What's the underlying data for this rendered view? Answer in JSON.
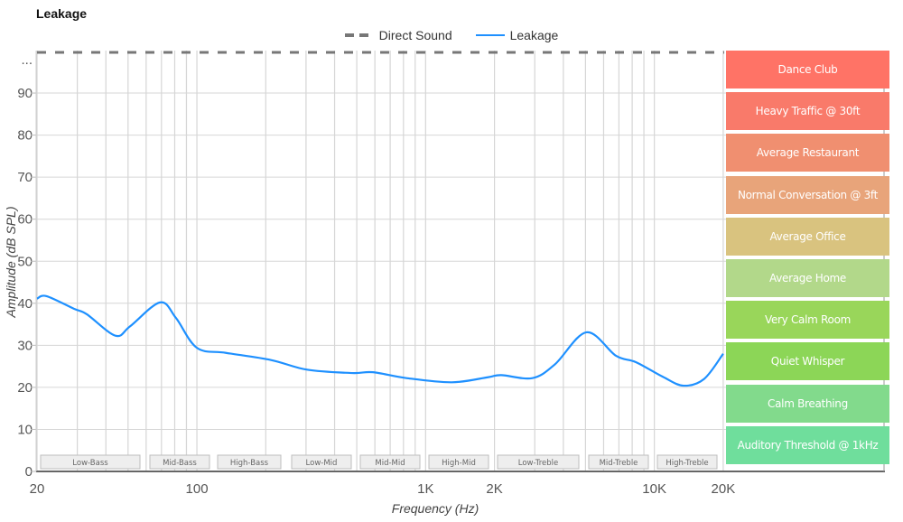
{
  "title": "Leakage",
  "legend": [
    {
      "name": "Direct Sound",
      "style": "dashed",
      "color": "#777777"
    },
    {
      "name": "Leakage",
      "style": "solid",
      "color": "#1e90ff"
    }
  ],
  "axes": {
    "xlabel": "Frequency (Hz)",
    "ylabel": "Amplitude (dB SPL)",
    "x_ticks": [
      "20",
      "100",
      "1K",
      "2K",
      "10K",
      "20K"
    ],
    "y_ticks": [
      "0",
      "10",
      "20",
      "30",
      "40",
      "50",
      "60",
      "70",
      "80",
      "90",
      "..."
    ]
  },
  "bands": [
    "Low-Bass",
    "Mid-Bass",
    "High-Bass",
    "Low-Mid",
    "Mid-Mid",
    "High-Mid",
    "Low-Treble",
    "Mid-Treble",
    "High-Treble"
  ],
  "noise_levels": [
    {
      "label": "Dance Club",
      "color": "#ff7366"
    },
    {
      "label": "Heavy Traffic @ 30ft",
      "color": "#f97a6a"
    },
    {
      "label": "Average Restaurant",
      "color": "#f08f70"
    },
    {
      "label": "Normal Conversation @ 3ft",
      "color": "#e8a47a"
    },
    {
      "label": "Average Office",
      "color": "#d9c37f"
    },
    {
      "label": "Average Home",
      "color": "#b2d88a"
    },
    {
      "label": "Very Calm Room",
      "color": "#99d65a"
    },
    {
      "label": "Quiet Whisper",
      "color": "#8cd657"
    },
    {
      "label": "Calm Breathing",
      "color": "#82da8c"
    },
    {
      "label": "Auditory Threshold @ 1kHz",
      "color": "#6fde9c"
    }
  ],
  "chart_data": {
    "type": "line",
    "title": "Leakage",
    "xlabel": "Frequency (Hz)",
    "ylabel": "Amplitude (dB SPL)",
    "x_scale": "log",
    "xlim": [
      20,
      20000
    ],
    "ylim": [
      0,
      98
    ],
    "grid": true,
    "legend_position": "top-center",
    "series": [
      {
        "name": "Leakage",
        "color": "#1e90ff",
        "x": [
          20,
          22,
          29,
          33,
          44,
          51,
          69,
          81,
          100,
          134,
          211,
          303,
          477,
          588,
          825,
          1300,
          1870,
          2140,
          2930,
          3680,
          5050,
          6800,
          8300,
          10900,
          13400,
          16500,
          20000
        ],
        "y": [
          41.1,
          41.7,
          38.7,
          37.4,
          32.3,
          34.5,
          40.2,
          36.5,
          29.4,
          28.2,
          26.5,
          24.2,
          23.4,
          23.6,
          22.2,
          21.2,
          22.4,
          22.9,
          22.2,
          25.5,
          33.1,
          27.5,
          26.0,
          22.5,
          20.4,
          22.0,
          28.0
        ]
      },
      {
        "name": "Direct Sound",
        "color": "#777777",
        "style": "dashed",
        "x": [
          20,
          20000
        ],
        "y": [
          98,
          98
        ]
      }
    ],
    "annotations": {
      "frequency_bands": [
        "Low-Bass",
        "Mid-Bass",
        "High-Bass",
        "Low-Mid",
        "Mid-Mid",
        "High-Mid",
        "Low-Treble",
        "Mid-Treble",
        "High-Treble"
      ],
      "noise_reference_levels": [
        "Dance Club",
        "Heavy Traffic @ 30ft",
        "Average Restaurant",
        "Normal Conversation @ 3ft",
        "Average Office",
        "Average Home",
        "Very Calm Room",
        "Quiet Whisper",
        "Calm Breathing",
        "Auditory Threshold @ 1kHz"
      ]
    }
  }
}
